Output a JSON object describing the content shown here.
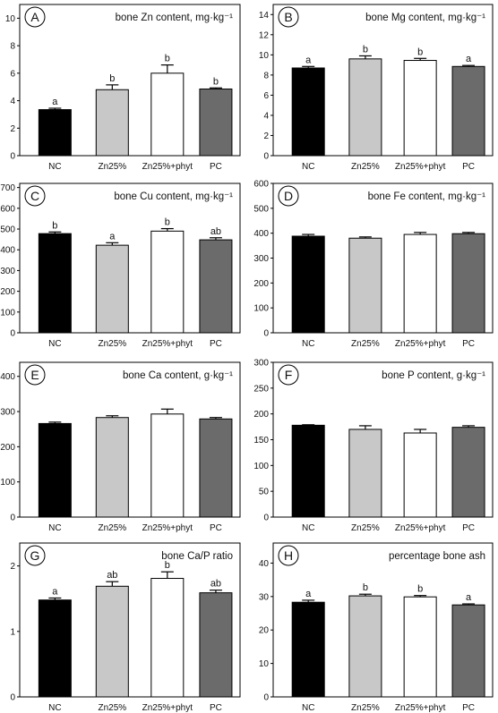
{
  "figure": {
    "categories": [
      "NC",
      "Zn25%",
      "Zn25%+phyt",
      "PC"
    ],
    "bar_colors": [
      "#000000",
      "#c8c8c8",
      "#ffffff",
      "#6b6b6b"
    ],
    "edge_color": "#000000"
  },
  "chart_data": [
    {
      "type": "bar",
      "panel": "A",
      "title": "bone Zn content, mg·kg⁻¹",
      "categories": [
        "NC",
        "Zn25%",
        "Zn25%+phyt",
        "PC"
      ],
      "values": [
        3.35,
        4.8,
        6.0,
        4.85
      ],
      "errors": [
        0.1,
        0.35,
        0.6,
        0.08
      ],
      "letters": [
        "a",
        "b",
        "b",
        "b"
      ],
      "ylim": [
        0,
        11
      ],
      "yticks": [
        "0",
        "2",
        "4",
        "6",
        "8",
        "10"
      ]
    },
    {
      "type": "bar",
      "panel": "B",
      "title": "bone Mg content, mg·kg⁻¹",
      "categories": [
        "NC",
        "Zn25%",
        "Zn25%+phyt",
        "PC"
      ],
      "values": [
        8.7,
        9.6,
        9.45,
        8.85
      ],
      "errors": [
        0.15,
        0.3,
        0.2,
        0.1
      ],
      "letters": [
        "a",
        "b",
        "b",
        "a"
      ],
      "ylim": [
        0,
        15
      ],
      "yticks": [
        "0",
        "2",
        "4",
        "6",
        "8",
        "10",
        "12",
        "14"
      ]
    },
    {
      "type": "bar",
      "panel": "C",
      "title": "bone Cu content, mg·kg⁻¹",
      "categories": [
        "NC",
        "Zn25%",
        "Zn25%+phyt",
        "PC"
      ],
      "values": [
        478,
        422,
        490,
        448
      ],
      "errors": [
        8,
        12,
        12,
        10
      ],
      "letters": [
        "b",
        "a",
        "b",
        "ab"
      ],
      "ylim": [
        0,
        720
      ],
      "yticks": [
        "0",
        "100",
        "200",
        "300",
        "400",
        "500",
        "600",
        "700"
      ]
    },
    {
      "type": "bar",
      "panel": "D",
      "title": "bone Fe content, mg·kg⁻¹",
      "categories": [
        "NC",
        "Zn25%",
        "Zn25%+phyt",
        "PC"
      ],
      "values": [
        388,
        380,
        395,
        398
      ],
      "errors": [
        7,
        5,
        8,
        5
      ],
      "letters": [
        "",
        "",
        "",
        ""
      ],
      "ylim": [
        0,
        600
      ],
      "yticks": [
        "0",
        "100",
        "200",
        "300",
        "400",
        "500",
        "600"
      ]
    },
    {
      "type": "bar",
      "panel": "E",
      "title": "bone Ca content, g·kg⁻¹",
      "categories": [
        "NC",
        "Zn25%",
        "Zn25%+phyt",
        "PC"
      ],
      "values": [
        266,
        283,
        293,
        279
      ],
      "errors": [
        4,
        5,
        14,
        4
      ],
      "letters": [
        "",
        "",
        "",
        ""
      ],
      "ylim": [
        0,
        440
      ],
      "yticks": [
        "0",
        "100",
        "200",
        "300",
        "400"
      ]
    },
    {
      "type": "bar",
      "panel": "F",
      "title": "bone P content, g·kg⁻¹",
      "categories": [
        "NC",
        "Zn25%",
        "Zn25%+phyt",
        "PC"
      ],
      "values": [
        178,
        170,
        163,
        174
      ],
      "errors": [
        1,
        7,
        7,
        3
      ],
      "letters": [
        "",
        "",
        "",
        ""
      ],
      "ylim": [
        0,
        300
      ],
      "yticks": [
        "0",
        "50",
        "100",
        "150",
        "200",
        "250",
        "300"
      ]
    },
    {
      "type": "bar",
      "panel": "G",
      "title": "bone Ca/P ratio",
      "categories": [
        "NC",
        "Zn25%",
        "Zn25%+phyt",
        "PC"
      ],
      "values": [
        1.48,
        1.69,
        1.81,
        1.59
      ],
      "errors": [
        0.03,
        0.07,
        0.1,
        0.04
      ],
      "letters": [
        "a",
        "ab",
        "b",
        "ab"
      ],
      "ylim": [
        0,
        2.35
      ],
      "yticks": [
        "0",
        "1",
        "2"
      ]
    },
    {
      "type": "bar",
      "panel": "H",
      "title": "percentage bone ash",
      "categories": [
        "NC",
        "Zn25%",
        "Zn25%+phyt",
        "PC"
      ],
      "values": [
        28.3,
        30.2,
        29.9,
        27.5
      ],
      "errors": [
        0.6,
        0.5,
        0.4,
        0.3
      ],
      "letters": [
        "a",
        "b",
        "b",
        "a"
      ],
      "ylim": [
        0,
        46
      ],
      "yticks": [
        "0",
        "10",
        "20",
        "30",
        "40"
      ]
    }
  ]
}
